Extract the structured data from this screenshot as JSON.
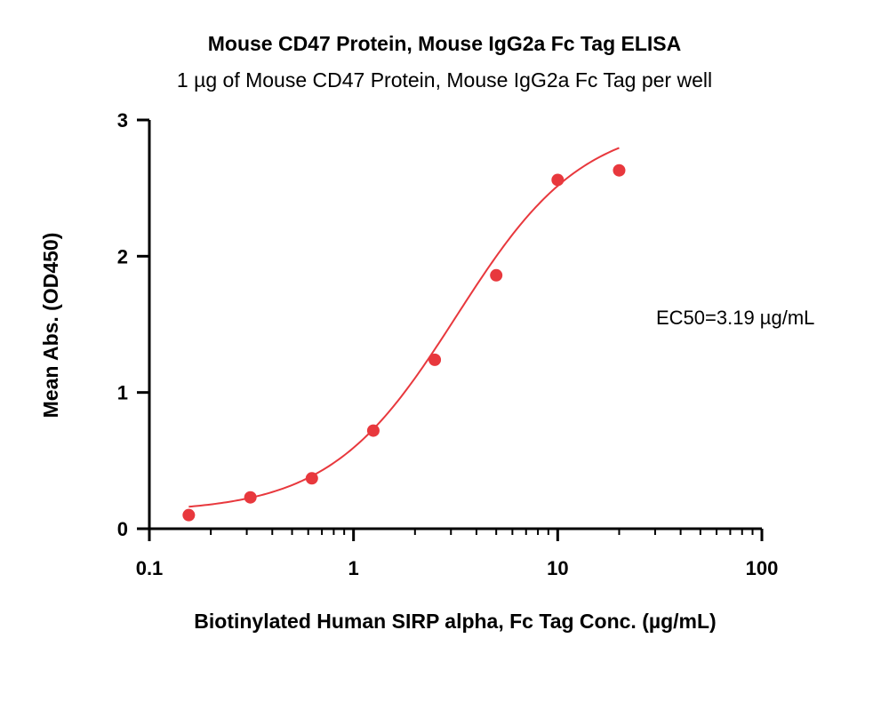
{
  "chart_data": {
    "type": "scatter",
    "title": "Mouse CD47 Protein, Mouse IgG2a Fc Tag ELISA",
    "subtitle": "1 µg of Mouse CD47 Protein, Mouse IgG2a Fc Tag per well",
    "xlabel": "Biotinylated Human SIRP alpha, Fc Tag Conc. (µg/mL)",
    "ylabel": "Mean Abs. (OD450)",
    "xscale": "log",
    "xlim": [
      0.1,
      100
    ],
    "ylim": [
      0,
      3
    ],
    "xticks": [
      0.1,
      1,
      10,
      100
    ],
    "xtick_labels": [
      "0.1",
      "1",
      "10",
      "100"
    ],
    "yticks": [
      0,
      1,
      2,
      3
    ],
    "ytick_labels": [
      "0",
      "1",
      "2",
      "3"
    ],
    "grid": false,
    "colors": {
      "series": "#e8383d",
      "axis": "#000000"
    },
    "series": [
      {
        "x": [
          0.156,
          0.3125,
          0.625,
          1.25,
          2.5,
          5,
          10,
          20
        ],
        "y": [
          0.1,
          0.23,
          0.37,
          0.72,
          1.24,
          1.86,
          2.56,
          2.63
        ]
      }
    ],
    "fit": {
      "type": "4PL",
      "bottom": 0.12,
      "top": 3.0,
      "ec50": 3.19,
      "hill": 1.4,
      "x_range": [
        0.156,
        20
      ]
    },
    "annotation": "EC50=3.19 µg/mL"
  }
}
